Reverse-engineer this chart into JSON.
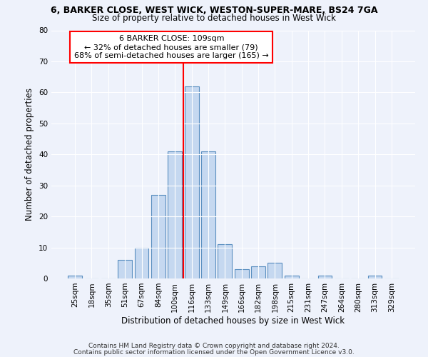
{
  "title1": "6, BARKER CLOSE, WEST WICK, WESTON-SUPER-MARE, BS24 7GA",
  "title2": "Size of property relative to detached houses in West Wick",
  "xlabel": "Distribution of detached houses by size in West Wick",
  "ylabel": "Number of detached properties",
  "bar_color": "#c5d8f0",
  "bar_edge_color": "#5a8fc0",
  "categories": [
    "25sqm",
    "18sqm",
    "35sqm",
    "51sqm",
    "67sqm",
    "84sqm",
    "100sqm",
    "116sqm",
    "133sqm",
    "149sqm",
    "166sqm",
    "182sqm",
    "198sqm",
    "215sqm",
    "231sqm",
    "247sqm",
    "264sqm",
    "280sqm",
    "313sqm",
    "329sqm"
  ],
  "values": [
    1,
    0,
    0,
    6,
    10,
    27,
    41,
    62,
    41,
    11,
    3,
    4,
    5,
    1,
    0,
    1,
    0,
    0,
    1,
    0
  ],
  "ylim": [
    0,
    80
  ],
  "yticks": [
    0,
    10,
    20,
    30,
    40,
    50,
    60,
    70,
    80
  ],
  "vline_x_idx": 6,
  "vline_color": "red",
  "annotation_text": "6 BARKER CLOSE: 109sqm\n← 32% of detached houses are smaller (79)\n68% of semi-detached houses are larger (165) →",
  "annotation_box_color": "white",
  "annotation_box_edge": "red",
  "footer1": "Contains HM Land Registry data © Crown copyright and database right 2024.",
  "footer2": "Contains public sector information licensed under the Open Government Licence v3.0.",
  "bg_color": "#eef2fb"
}
